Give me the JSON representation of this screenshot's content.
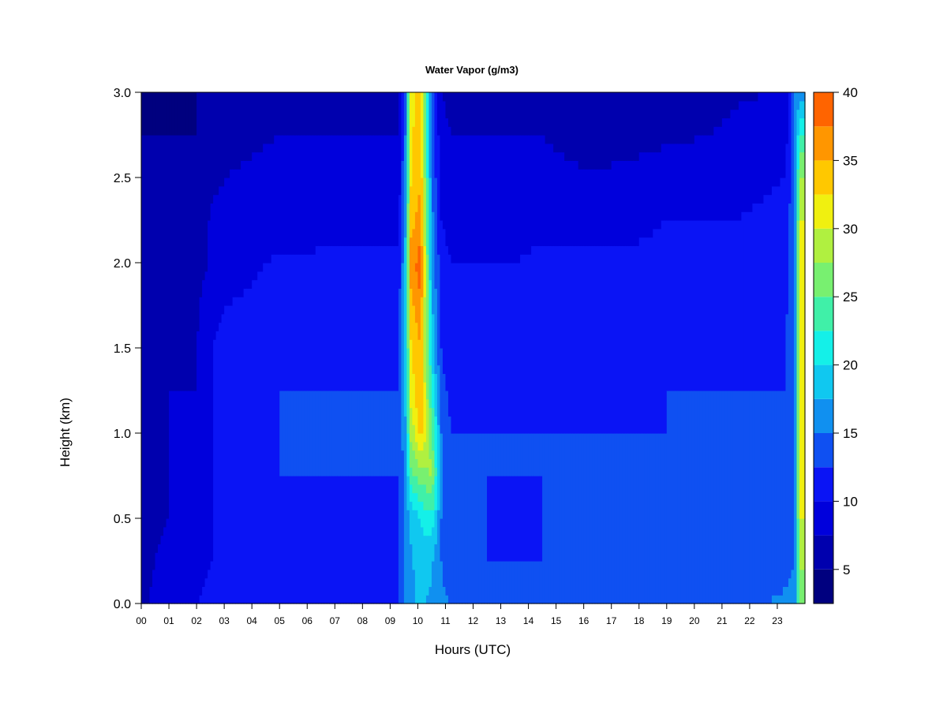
{
  "chart_data": {
    "type": "heatmap",
    "title": "Water Vapor (g/m3)",
    "xlabel": "Hours (UTC)",
    "ylabel": "Height (km)",
    "xlim": [
      0,
      24
    ],
    "ylim": [
      0,
      3
    ],
    "x_ticks": [
      "00",
      "01",
      "02",
      "03",
      "04",
      "05",
      "06",
      "07",
      "08",
      "09",
      "10",
      "11",
      "12",
      "13",
      "14",
      "15",
      "16",
      "17",
      "18",
      "19",
      "20",
      "21",
      "22",
      "23"
    ],
    "y_ticks": [
      "0.0",
      "0.5",
      "1.0",
      "1.5",
      "2.0",
      "2.5",
      "3.0"
    ],
    "colorbar": {
      "min": 2.5,
      "max": 40,
      "step": 2.5,
      "tick_labels": [
        "5",
        "10",
        "15",
        "20",
        "25",
        "30",
        "35",
        "40"
      ],
      "colors": [
        "#00007f",
        "#0000ae",
        "#0000dc",
        "#0a14f5",
        "#0f50f2",
        "#1090f0",
        "#10c8f0",
        "#14f0e8",
        "#40f0a8",
        "#78f070",
        "#b0f040",
        "#f0f010",
        "#ffc800",
        "#ff9600",
        "#ff6400",
        "#ff3000",
        "#f00000",
        "#b00000",
        "#7f0000"
      ]
    },
    "height_levels_km": [
      0.0,
      0.25,
      0.5,
      0.75,
      1.0,
      1.25,
      1.5,
      1.75,
      2.0,
      2.25,
      2.5,
      2.75,
      3.0
    ],
    "columns": [
      {
        "hour": 0.0,
        "values": [
          6.5,
          6.5,
          6.0,
          6.0,
          6.0,
          6.0,
          6.0,
          6.0,
          5.5,
          5.5,
          5.0,
          5.0,
          4.5
        ]
      },
      {
        "hour": 1.0,
        "values": [
          10.0,
          8.5,
          7.5,
          7.5,
          7.5,
          7.5,
          7.0,
          7.0,
          6.5,
          6.0,
          5.5,
          5.0,
          4.5
        ]
      },
      {
        "hour": 2.0,
        "values": [
          10.0,
          9.0,
          7.5,
          7.5,
          7.5,
          7.5,
          7.5,
          7.0,
          6.5,
          6.0,
          5.5,
          5.0,
          5.0
        ]
      },
      {
        "hour": 2.6,
        "values": [
          11.0,
          10.0,
          10.0,
          10.0,
          10.0,
          10.0,
          10.0,
          9.5,
          8.0,
          8.0,
          7.0,
          6.5,
          6.0
        ]
      },
      {
        "hour": 3.0,
        "values": [
          12.5,
          11.0,
          11.0,
          11.0,
          11.0,
          11.0,
          10.5,
          10.0,
          8.5,
          8.0,
          7.5,
          7.0,
          6.5
        ]
      },
      {
        "hour": 5.0,
        "values": [
          12.5,
          11.0,
          11.5,
          12.5,
          12.5,
          12.5,
          11.5,
          11.0,
          10.5,
          8.5,
          8.0,
          7.5,
          7.0
        ]
      },
      {
        "hour": 7.0,
        "values": [
          12.5,
          11.0,
          11.5,
          12.5,
          12.5,
          12.5,
          12.0,
          11.5,
          10.5,
          9.0,
          8.0,
          7.5,
          7.0
        ]
      },
      {
        "hour": 8.5,
        "values": [
          12.5,
          11.5,
          11.5,
          12.5,
          12.5,
          12.5,
          12.0,
          11.5,
          11.0,
          9.0,
          8.0,
          7.5,
          7.0
        ]
      },
      {
        "hour": 9.3,
        "values": [
          12.5,
          12.0,
          12.0,
          12.5,
          12.5,
          12.5,
          12.0,
          11.5,
          10.5,
          9.0,
          8.0,
          7.5,
          7.0
        ]
      },
      {
        "hour": 9.55,
        "values": [
          16.0,
          15.0,
          15.0,
          16.0,
          17.0,
          18.0,
          18.0,
          18.0,
          18.0,
          17.0,
          16.0,
          15.0,
          14.0
        ]
      },
      {
        "hour": 9.75,
        "values": [
          17.0,
          17.0,
          18.0,
          24.0,
          28.0,
          31.0,
          32.0,
          34.0,
          36.0,
          34.0,
          32.0,
          32.0,
          32.0
        ]
      },
      {
        "hour": 10.1,
        "values": [
          18.0,
          19.0,
          20.0,
          26.0,
          34.0,
          35.0,
          35.0,
          37.0,
          39.0,
          36.0,
          35.0,
          34.0,
          33.0
        ]
      },
      {
        "hour": 10.5,
        "values": [
          17.0,
          18.0,
          22.0,
          28.0,
          26.0,
          22.0,
          20.0,
          18.0,
          17.0,
          16.0,
          15.0,
          15.0,
          14.0
        ]
      },
      {
        "hour": 10.85,
        "values": [
          15.5,
          15.0,
          15.0,
          16.0,
          15.0,
          13.0,
          12.5,
          12.0,
          11.0,
          10.0,
          9.0,
          8.0,
          7.5
        ]
      },
      {
        "hour": 11.2,
        "values": [
          15.0,
          13.0,
          12.5,
          12.5,
          12.5,
          12.0,
          11.5,
          11.0,
          10.0,
          9.0,
          8.0,
          7.5,
          7.0
        ]
      },
      {
        "hour": 12.5,
        "values": [
          13.0,
          12.5,
          12.5,
          12.5,
          12.5,
          12.0,
          11.5,
          11.0,
          10.0,
          9.0,
          8.0,
          7.5,
          7.0
        ]
      },
      {
        "hour": 13.5,
        "values": [
          13.0,
          12.5,
          12.0,
          12.5,
          12.5,
          11.0,
          11.0,
          10.5,
          10.0,
          9.0,
          8.0,
          7.5,
          7.0
        ]
      },
      {
        "hour": 14.5,
        "values": [
          13.5,
          12.5,
          12.5,
          12.5,
          12.5,
          11.0,
          10.5,
          10.5,
          10.5,
          9.5,
          8.5,
          7.5,
          7.0
        ]
      },
      {
        "hour": 16.0,
        "values": [
          13.5,
          12.5,
          12.5,
          12.5,
          12.5,
          11.0,
          10.5,
          10.5,
          10.5,
          9.0,
          8.0,
          6.0,
          5.0
        ]
      },
      {
        "hour": 17.5,
        "values": [
          14.0,
          12.5,
          12.5,
          12.5,
          12.5,
          12.0,
          11.5,
          11.0,
          10.5,
          9.0,
          8.0,
          6.5,
          5.0
        ]
      },
      {
        "hour": 19.0,
        "values": [
          14.0,
          12.5,
          12.5,
          12.5,
          12.5,
          12.5,
          12.0,
          11.5,
          11.0,
          10.0,
          9.0,
          7.0,
          5.0
        ]
      },
      {
        "hour": 20.5,
        "values": [
          14.0,
          12.5,
          12.5,
          12.5,
          12.5,
          12.5,
          12.0,
          11.5,
          11.0,
          10.0,
          9.0,
          7.5,
          5.5
        ]
      },
      {
        "hour": 21.5,
        "values": [
          14.0,
          12.5,
          12.5,
          12.5,
          12.5,
          12.5,
          12.0,
          11.5,
          11.0,
          10.0,
          9.0,
          8.5,
          7.0
        ]
      },
      {
        "hour": 22.5,
        "values": [
          15.0,
          13.0,
          12.5,
          12.5,
          12.5,
          12.5,
          12.0,
          11.5,
          11.0,
          10.5,
          9.5,
          8.5,
          7.5
        ]
      },
      {
        "hour": 23.3,
        "values": [
          15.5,
          14.0,
          13.0,
          13.0,
          13.0,
          12.5,
          12.5,
          12.0,
          11.5,
          11.0,
          10.0,
          9.0,
          8.0
        ]
      },
      {
        "hour": 23.65,
        "values": [
          16.0,
          15.0,
          15.0,
          15.0,
          15.0,
          15.0,
          15.0,
          15.0,
          15.0,
          15.0,
          15.0,
          15.0,
          15.0
        ]
      },
      {
        "hour": 23.8,
        "values": [
          26.0,
          28.0,
          30.0,
          30.0,
          30.0,
          30.0,
          30.0,
          30.0,
          30.0,
          30.0,
          28.0,
          22.0,
          16.0
        ]
      }
    ]
  }
}
